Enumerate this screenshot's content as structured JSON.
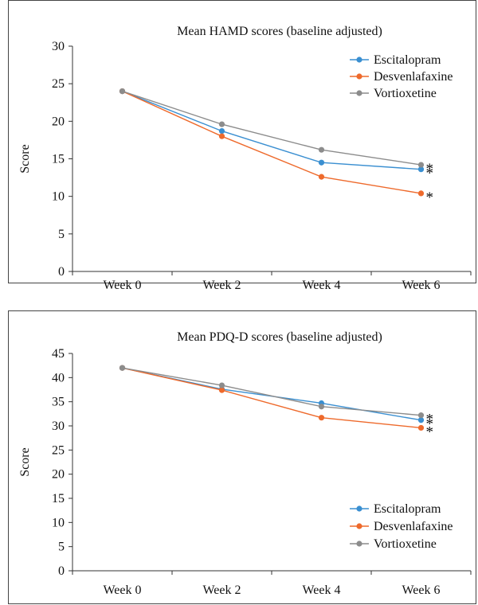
{
  "chart_data": [
    {
      "type": "line",
      "title": "Mean HAMD scores (baseline adjusted)",
      "ylabel": "Score",
      "xlabel": "",
      "categories": [
        "Week 0",
        "Week 2",
        "Week 4",
        "Week 6"
      ],
      "ylim": [
        0,
        30
      ],
      "yticks": [
        0,
        5,
        10,
        15,
        20,
        25,
        30
      ],
      "legend_position": "top-right",
      "series": [
        {
          "name": "Escitalopram",
          "color": "#3a8fd1",
          "values": [
            24.0,
            18.7,
            14.5,
            13.6
          ]
        },
        {
          "name": "Desvenlafaxine",
          "color": "#ee6a2c",
          "values": [
            24.0,
            18.0,
            12.6,
            10.4
          ]
        },
        {
          "name": "Vortioxetine",
          "color": "#8c8c8c",
          "values": [
            24.0,
            19.6,
            16.2,
            14.2
          ]
        }
      ],
      "annotations": [
        {
          "text": "*",
          "category": "Week 6",
          "value": 14.2
        },
        {
          "text": "*",
          "category": "Week 6",
          "value": 13.6
        },
        {
          "text": "*",
          "category": "Week 6",
          "value": 10.4
        }
      ]
    },
    {
      "type": "line",
      "title": "Mean PDQ-D scores (baseline adjusted)",
      "ylabel": "Score",
      "xlabel": "",
      "categories": [
        "Week 0",
        "Week 2",
        "Week 4",
        "Week 6"
      ],
      "ylim": [
        0,
        45
      ],
      "yticks": [
        0,
        5,
        10,
        15,
        20,
        25,
        30,
        35,
        40,
        45
      ],
      "legend_position": "bottom-right",
      "series": [
        {
          "name": "Escitalopram",
          "color": "#3a8fd1",
          "values": [
            42.0,
            37.6,
            34.7,
            31.2
          ]
        },
        {
          "name": "Desvenlafaxine",
          "color": "#ee6a2c",
          "values": [
            42.0,
            37.4,
            31.7,
            29.6
          ]
        },
        {
          "name": "Vortioxetine",
          "color": "#8c8c8c",
          "values": [
            42.0,
            38.4,
            34.0,
            32.2
          ]
        }
      ],
      "annotations": [
        {
          "text": "*",
          "category": "Week 6",
          "value": 32.2
        },
        {
          "text": "*",
          "category": "Week 6",
          "value": 31.2
        },
        {
          "text": "*",
          "category": "Week 6",
          "value": 29.6
        }
      ]
    }
  ]
}
